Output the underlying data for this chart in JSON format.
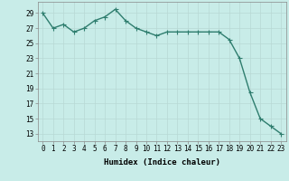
{
  "x": [
    0,
    1,
    2,
    3,
    4,
    5,
    6,
    7,
    8,
    9,
    10,
    11,
    12,
    13,
    14,
    15,
    16,
    17,
    18,
    19,
    20,
    21,
    22,
    23
  ],
  "y": [
    29,
    27,
    27.5,
    26.5,
    27,
    28,
    28.5,
    29.5,
    28,
    27,
    26.5,
    26,
    26.5,
    26.5,
    26.5,
    26.5,
    26.5,
    26.5,
    25.5,
    23,
    18.5,
    15,
    14,
    13
  ],
  "line_color": "#2e7d6e",
  "marker": "D",
  "marker_size": 1.8,
  "bg_color": "#c8ece8",
  "grid_color": "#b8d8d4",
  "xlabel": "Humidex (Indice chaleur)",
  "ylabel_ticks": [
    13,
    15,
    17,
    19,
    21,
    23,
    25,
    27,
    29
  ],
  "xlim": [
    -0.5,
    23.5
  ],
  "ylim": [
    12,
    30.5
  ],
  "tick_label_fontsize": 5.5,
  "xlabel_fontsize": 6.5,
  "linewidth": 1.0
}
